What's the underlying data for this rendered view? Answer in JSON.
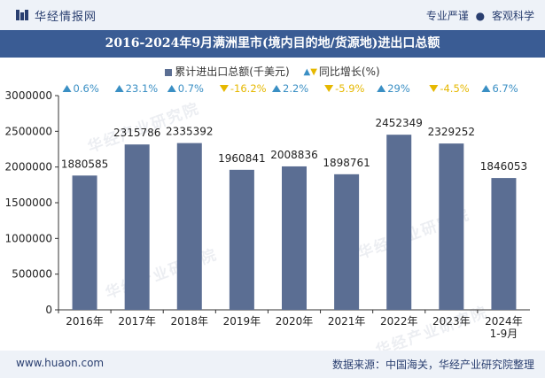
{
  "header": {
    "brand": "华经情报网",
    "slogan_left": "专业严谨",
    "slogan_sep": "●",
    "slogan_right": "客观科学"
  },
  "title": "2016-2024年9月满洲里市(境内目的地/货源地)进出口总额",
  "legend": {
    "bar_label": "累计进出口总额(千美元)",
    "growth_label": "同比增长(%)"
  },
  "watermark": "华经产业研究院",
  "footer": {
    "url": "www.huaon.com",
    "source": "数据来源：中国海关，华经产业研究院整理"
  },
  "colors": {
    "bar": "#5b6e93",
    "up": "#3a8fc4",
    "down": "#e6b800",
    "title_bg": "#3a5c94"
  },
  "chart_data": {
    "type": "bar",
    "categories": [
      "2016年",
      "2017年",
      "2018年",
      "2019年",
      "2020年",
      "2021年",
      "2022年",
      "2023年",
      "2024年\n1-9月"
    ],
    "series": [
      {
        "name": "累计进出口总额(千美元)",
        "values": [
          1880585,
          2315786,
          2335392,
          1960841,
          2008836,
          1898761,
          2452349,
          2329252,
          1846053
        ]
      },
      {
        "name": "同比增长(%)",
        "values": [
          0.6,
          23.1,
          0.7,
          -16.2,
          2.2,
          -5.9,
          29,
          -4.5,
          6.7
        ]
      }
    ],
    "value_labels": [
      "1880585",
      "2315786",
      "2335392",
      "1960841",
      "2008836",
      "1898761",
      "2452349",
      "2329252",
      "1846053"
    ],
    "growth_labels": [
      "0.6%",
      "23.1%",
      "0.7%",
      "-16.2%",
      "2.2%",
      "-5.9%",
      "29%",
      "-4.5%",
      "6.7%"
    ],
    "yticks": [
      "0",
      "500000",
      "1000000",
      "1500000",
      "2000000",
      "2500000",
      "3000000"
    ],
    "ylim": [
      0,
      3000000
    ],
    "grid": false,
    "legend_position": "top"
  }
}
